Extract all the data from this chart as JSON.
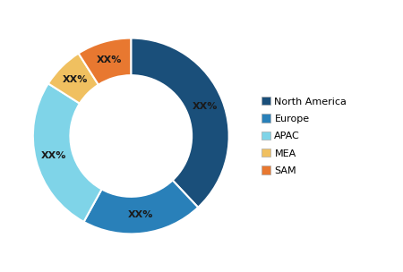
{
  "labels": [
    "North America",
    "Europe",
    "APAC",
    "MEA",
    "SAM"
  ],
  "values": [
    38,
    20,
    26,
    7,
    9
  ],
  "colors": [
    "#1a4f7a",
    "#2980b9",
    "#7fd4e8",
    "#f0c060",
    "#e87830"
  ],
  "label_text": [
    "XX%",
    "XX%",
    "XX%",
    "XX%",
    "XX%"
  ],
  "donut_width": 0.38,
  "background_color": "#ffffff",
  "legend_labels": [
    "North America",
    "Europe",
    "APAC",
    "MEA",
    "SAM"
  ],
  "legend_colors": [
    "#1a4f7a",
    "#2980b9",
    "#7fd4e8",
    "#f0c060",
    "#e87830"
  ],
  "font_size_label": 8,
  "font_size_legend": 8,
  "startangle": 90
}
